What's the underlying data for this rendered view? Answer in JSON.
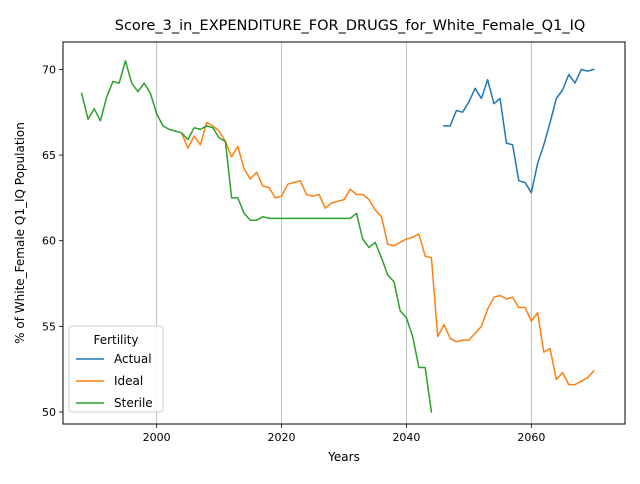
{
  "chart_data": {
    "type": "line",
    "title": "Score_3_in_EXPENDITURE_FOR_DRUGS_for_White_Female_Q1_IQ",
    "xlabel": "Years",
    "ylabel": "% of White_Female Q1_IQ Population",
    "xlim": [
      1985,
      2075
    ],
    "ylim": [
      49.3,
      71.6
    ],
    "xticks": [
      2000,
      2020,
      2040,
      2060
    ],
    "yticks": [
      50,
      55,
      60,
      65,
      70
    ],
    "grid": "x-only",
    "legend": {
      "title": "Fertility",
      "placement": "lower-left"
    },
    "series": [
      {
        "name": "Actual",
        "color": "#1f77b4",
        "x": [
          2046,
          2047,
          2048,
          2049,
          2050,
          2051,
          2052,
          2053,
          2054,
          2055,
          2056,
          2057,
          2058,
          2059,
          2060,
          2061,
          2062,
          2063,
          2064,
          2065,
          2066,
          2067,
          2068,
          2069,
          2070
        ],
        "y": [
          66.7,
          66.7,
          67.6,
          67.5,
          68.1,
          68.9,
          68.3,
          69.4,
          68.0,
          68.3,
          65.7,
          65.6,
          63.5,
          63.4,
          62.8,
          64.5,
          65.6,
          66.9,
          68.3,
          68.8,
          69.7,
          69.2,
          70.0,
          69.9,
          70.0
        ]
      },
      {
        "name": "Ideal",
        "color": "#ff7f0e",
        "x": [
          2004,
          2005,
          2006,
          2007,
          2008,
          2009,
          2010,
          2011,
          2012,
          2013,
          2014,
          2015,
          2016,
          2017,
          2018,
          2019,
          2020,
          2021,
          2022,
          2023,
          2024,
          2025,
          2026,
          2027,
          2028,
          2029,
          2030,
          2031,
          2032,
          2033,
          2034,
          2035,
          2036,
          2037,
          2038,
          2039,
          2040,
          2041,
          2042,
          2043,
          2044,
          2045,
          2046,
          2047,
          2048,
          2049,
          2050,
          2051,
          2052,
          2053,
          2054,
          2055,
          2056,
          2057,
          2058,
          2059,
          2060,
          2061,
          2062,
          2063,
          2064,
          2065,
          2066,
          2067,
          2068,
          2069,
          2070
        ],
        "y": [
          66.3,
          65.4,
          66.1,
          65.6,
          66.9,
          66.7,
          66.4,
          65.8,
          64.9,
          65.5,
          64.2,
          63.6,
          64.0,
          63.2,
          63.1,
          62.5,
          62.6,
          63.3,
          63.4,
          63.5,
          62.7,
          62.6,
          62.7,
          61.9,
          62.2,
          62.3,
          62.4,
          63.0,
          62.7,
          62.7,
          62.4,
          61.8,
          61.4,
          59.8,
          59.7,
          59.9,
          60.1,
          60.2,
          60.4,
          59.1,
          59.0,
          54.4,
          55.1,
          54.3,
          54.1,
          54.2,
          54.2,
          54.6,
          55.0,
          56.0,
          56.7,
          56.8,
          56.6,
          56.7,
          56.1,
          56.1,
          55.3,
          55.8,
          53.5,
          53.7,
          51.9,
          52.3,
          51.6,
          51.6,
          51.8,
          52.0,
          52.4
        ]
      },
      {
        "name": "Sterile",
        "color": "#2ca02c",
        "x": [
          1988,
          1989,
          1990,
          1991,
          1992,
          1993,
          1994,
          1995,
          1996,
          1997,
          1998,
          1999,
          2000,
          2001,
          2002,
          2003,
          2004,
          2005,
          2006,
          2007,
          2008,
          2009,
          2010,
          2011,
          2012,
          2013,
          2014,
          2015,
          2016,
          2017,
          2018,
          2019,
          2020,
          2021,
          2022,
          2023,
          2024,
          2025,
          2026,
          2027,
          2028,
          2029,
          2030,
          2031,
          2032,
          2033,
          2034,
          2035,
          2036,
          2037,
          2038,
          2039,
          2040,
          2041,
          2042,
          2043,
          2044
        ],
        "y": [
          68.6,
          67.1,
          67.7,
          67.0,
          68.4,
          69.3,
          69.2,
          70.5,
          69.2,
          68.7,
          69.2,
          68.6,
          67.4,
          66.7,
          66.5,
          66.4,
          66.3,
          65.9,
          66.6,
          66.5,
          66.7,
          66.6,
          66.0,
          65.8,
          62.5,
          62.5,
          61.6,
          61.2,
          61.2,
          61.4,
          61.3,
          61.3,
          61.3,
          61.3,
          61.3,
          61.3,
          61.3,
          61.3,
          61.3,
          61.3,
          61.3,
          61.3,
          61.3,
          61.3,
          61.6,
          60.1,
          59.6,
          59.9,
          59.0,
          58.0,
          57.6,
          55.9,
          55.5,
          54.4,
          52.6,
          52.6,
          50.0
        ]
      }
    ]
  }
}
